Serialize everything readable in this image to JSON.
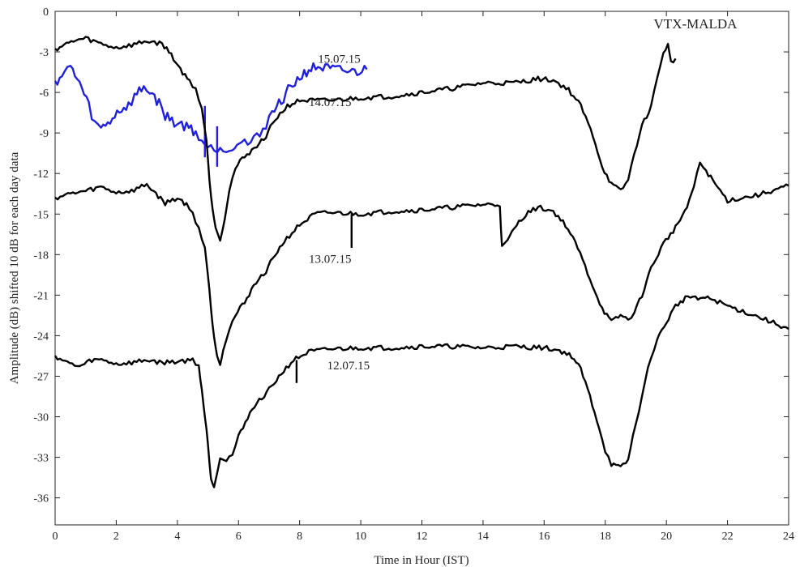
{
  "chart_data": {
    "type": "line",
    "title": "VTX-MALDA",
    "xlabel": "Time in Hour (IST)",
    "ylabel": "Amplitude (dB) shifted 10 dB for each day data",
    "xlim": [
      0,
      24
    ],
    "ylim": [
      -38,
      0
    ],
    "xticks": [
      0,
      2,
      4,
      6,
      8,
      10,
      12,
      14,
      16,
      18,
      20,
      22,
      24
    ],
    "yticks": [
      0,
      -3,
      -6,
      -9,
      -12,
      -15,
      -18,
      -21,
      -24,
      -27,
      -30,
      -33,
      -36
    ],
    "grid": false,
    "series": [
      {
        "name": "15.07.15",
        "color": "#1f1fe0",
        "label_at": [
          8.6,
          -3.8
        ],
        "points": [
          [
            0,
            -5.2
          ],
          [
            0.3,
            -4.6
          ],
          [
            0.5,
            -4.1
          ],
          [
            0.8,
            -5.3
          ],
          [
            1.1,
            -7.0
          ],
          [
            1.3,
            -8.3
          ],
          [
            1.5,
            -8.7
          ],
          [
            1.8,
            -8.1
          ],
          [
            2.1,
            -7.3
          ],
          [
            2.4,
            -7.0
          ],
          [
            2.6,
            -6.3
          ],
          [
            2.9,
            -5.6
          ],
          [
            3.1,
            -5.9
          ],
          [
            3.4,
            -6.8
          ],
          [
            3.6,
            -7.7
          ],
          [
            3.9,
            -8.2
          ],
          [
            4.3,
            -8.5
          ],
          [
            4.6,
            -8.9
          ],
          [
            4.8,
            -9.6
          ],
          [
            5.0,
            -10.0
          ],
          [
            5.2,
            -10.3
          ],
          [
            5.4,
            -9.9
          ],
          [
            5.6,
            -10.4
          ],
          [
            5.8,
            -9.9
          ],
          [
            6.1,
            -9.5
          ],
          [
            6.3,
            -9.8
          ],
          [
            6.5,
            -9.6
          ],
          [
            6.7,
            -9.0
          ],
          [
            6.9,
            -8.3
          ],
          [
            7.1,
            -7.5
          ],
          [
            7.4,
            -6.6
          ],
          [
            7.7,
            -5.6
          ],
          [
            8.0,
            -4.9
          ],
          [
            8.3,
            -4.3
          ],
          [
            8.6,
            -4.1
          ],
          [
            9.0,
            -4.3
          ],
          [
            9.4,
            -4.4
          ],
          [
            9.8,
            -4.5
          ],
          [
            10.2,
            -4.3
          ]
        ],
        "spikes": [
          [
            4.9,
            -7.0,
            -10.8
          ],
          [
            5.3,
            -8.5,
            -11.5
          ]
        ]
      },
      {
        "name": "14.07.15",
        "color": "#000000",
        "label_at": [
          8.3,
          -7.0
        ],
        "points": [
          [
            0,
            -2.8
          ],
          [
            0.3,
            -2.5
          ],
          [
            0.6,
            -2.2
          ],
          [
            1.0,
            -2.0
          ],
          [
            1.5,
            -2.4
          ],
          [
            2.0,
            -2.7
          ],
          [
            2.5,
            -2.5
          ],
          [
            3.0,
            -2.2
          ],
          [
            3.5,
            -2.4
          ],
          [
            3.8,
            -3.2
          ],
          [
            4.1,
            -4.3
          ],
          [
            4.4,
            -5.2
          ],
          [
            4.6,
            -5.7
          ],
          [
            4.8,
            -7.2
          ],
          [
            4.95,
            -9.5
          ],
          [
            5.05,
            -12.5
          ],
          [
            5.15,
            -14.5
          ],
          [
            5.25,
            -16.0
          ],
          [
            5.4,
            -16.8
          ],
          [
            5.55,
            -15.3
          ],
          [
            5.7,
            -13.2
          ],
          [
            5.9,
            -11.6
          ],
          [
            6.2,
            -10.7
          ],
          [
            6.6,
            -10.0
          ],
          [
            6.9,
            -9.2
          ],
          [
            7.2,
            -8.0
          ],
          [
            7.6,
            -7.0
          ],
          [
            8.0,
            -6.6
          ],
          [
            9.0,
            -6.6
          ],
          [
            10.0,
            -6.4
          ],
          [
            11.0,
            -6.3
          ],
          [
            12.0,
            -6.0
          ],
          [
            13.0,
            -5.7
          ],
          [
            14.0,
            -5.3
          ],
          [
            15.0,
            -5.3
          ],
          [
            15.8,
            -5.0
          ],
          [
            16.3,
            -5.1
          ],
          [
            16.8,
            -5.8
          ],
          [
            17.2,
            -7.0
          ],
          [
            17.6,
            -9.2
          ],
          [
            17.9,
            -11.5
          ],
          [
            18.2,
            -12.8
          ],
          [
            18.5,
            -13.3
          ],
          [
            18.75,
            -12.5
          ],
          [
            18.95,
            -10.5
          ],
          [
            19.2,
            -8.5
          ],
          [
            19.5,
            -7.0
          ],
          [
            19.7,
            -5.0
          ],
          [
            19.9,
            -3.0
          ],
          [
            20.05,
            -2.5
          ],
          [
            20.15,
            -3.8
          ],
          [
            20.3,
            -3.5
          ]
        ]
      },
      {
        "name": "13.07.15",
        "color": "#000000",
        "label_at": [
          8.3,
          -18.6
        ],
        "points": [
          [
            0,
            -13.8
          ],
          [
            0.5,
            -13.5
          ],
          [
            1.0,
            -13.3
          ],
          [
            1.5,
            -13.0
          ],
          [
            2.0,
            -13.4
          ],
          [
            2.5,
            -13.3
          ],
          [
            3.0,
            -12.8
          ],
          [
            3.3,
            -13.5
          ],
          [
            3.6,
            -14.2
          ],
          [
            4.0,
            -13.8
          ],
          [
            4.3,
            -14.3
          ],
          [
            4.5,
            -15.0
          ],
          [
            4.7,
            -16.0
          ],
          [
            4.9,
            -17.5
          ],
          [
            5.0,
            -19.5
          ],
          [
            5.1,
            -22.0
          ],
          [
            5.2,
            -24.0
          ],
          [
            5.3,
            -25.5
          ],
          [
            5.4,
            -26.0
          ],
          [
            5.5,
            -25.0
          ],
          [
            5.7,
            -23.5
          ],
          [
            5.9,
            -22.5
          ],
          [
            6.2,
            -21.5
          ],
          [
            6.5,
            -20.3
          ],
          [
            6.9,
            -19.2
          ],
          [
            7.2,
            -18.0
          ],
          [
            7.5,
            -17.0
          ],
          [
            8.0,
            -15.8
          ],
          [
            8.5,
            -15.0
          ],
          [
            9.0,
            -14.9
          ],
          [
            10.0,
            -15.0
          ],
          [
            11.0,
            -14.8
          ],
          [
            12.0,
            -14.7
          ],
          [
            13.0,
            -14.5
          ],
          [
            14.0,
            -14.3
          ],
          [
            14.55,
            -14.3
          ],
          [
            14.62,
            -17.5
          ],
          [
            14.8,
            -17.0
          ],
          [
            15.1,
            -15.8
          ],
          [
            15.4,
            -15.0
          ],
          [
            15.8,
            -14.5
          ],
          [
            16.3,
            -14.8
          ],
          [
            16.7,
            -15.8
          ],
          [
            17.1,
            -17.5
          ],
          [
            17.5,
            -19.8
          ],
          [
            17.9,
            -22.0
          ],
          [
            18.2,
            -23.0
          ],
          [
            18.5,
            -22.5
          ],
          [
            18.75,
            -22.8
          ],
          [
            18.95,
            -22.3
          ],
          [
            19.2,
            -21.0
          ],
          [
            19.5,
            -19.0
          ],
          [
            19.9,
            -17.2
          ],
          [
            20.3,
            -16.0
          ],
          [
            20.6,
            -14.8
          ],
          [
            20.9,
            -13.0
          ],
          [
            21.1,
            -11.2
          ],
          [
            21.3,
            -11.8
          ],
          [
            21.6,
            -12.8
          ],
          [
            22.0,
            -14.0
          ],
          [
            23.0,
            -13.6
          ],
          [
            24.0,
            -12.9
          ]
        ],
        "spikes": [
          [
            9.7,
            -15.0,
            -17.5
          ]
        ]
      },
      {
        "name": "12.07.15",
        "color": "#000000",
        "label_at": [
          8.9,
          -26.5
        ],
        "points": [
          [
            0,
            -25.5
          ],
          [
            0.4,
            -26.0
          ],
          [
            0.8,
            -26.3
          ],
          [
            1.2,
            -25.8
          ],
          [
            1.6,
            -25.8
          ],
          [
            2.0,
            -26.1
          ],
          [
            2.5,
            -26.0
          ],
          [
            3.0,
            -25.8
          ],
          [
            3.5,
            -26.0
          ],
          [
            4.0,
            -25.9
          ],
          [
            4.5,
            -25.8
          ],
          [
            4.7,
            -26.2
          ],
          [
            4.8,
            -28.0
          ],
          [
            4.9,
            -30.0
          ],
          [
            5.0,
            -32.0
          ],
          [
            5.1,
            -34.5
          ],
          [
            5.2,
            -35.2
          ],
          [
            5.3,
            -34.0
          ],
          [
            5.4,
            -33.0
          ],
          [
            5.6,
            -33.2
          ],
          [
            5.8,
            -32.8
          ],
          [
            6.0,
            -31.5
          ],
          [
            6.3,
            -30.0
          ],
          [
            6.6,
            -29.0
          ],
          [
            7.0,
            -28.0
          ],
          [
            7.4,
            -26.8
          ],
          [
            7.8,
            -25.8
          ],
          [
            8.3,
            -25.2
          ],
          [
            9.0,
            -25.0
          ],
          [
            10.0,
            -24.9
          ],
          [
            11.0,
            -24.9
          ],
          [
            12.0,
            -24.8
          ],
          [
            13.0,
            -24.8
          ],
          [
            14.0,
            -24.9
          ],
          [
            15.0,
            -24.8
          ],
          [
            16.0,
            -24.9
          ],
          [
            16.5,
            -25.1
          ],
          [
            16.9,
            -25.5
          ],
          [
            17.2,
            -26.5
          ],
          [
            17.5,
            -28.5
          ],
          [
            17.8,
            -30.8
          ],
          [
            18.0,
            -32.5
          ],
          [
            18.2,
            -33.5
          ],
          [
            18.5,
            -33.8
          ],
          [
            18.75,
            -33.2
          ],
          [
            18.9,
            -31.5
          ],
          [
            19.1,
            -29.5
          ],
          [
            19.3,
            -27.5
          ],
          [
            19.5,
            -25.5
          ],
          [
            19.7,
            -24.3
          ],
          [
            20.0,
            -23.0
          ],
          [
            20.3,
            -21.8
          ],
          [
            20.7,
            -21.1
          ],
          [
            21.2,
            -21.2
          ],
          [
            21.5,
            -21.3
          ],
          [
            22.0,
            -21.8
          ],
          [
            23.0,
            -22.6
          ],
          [
            24.0,
            -23.5
          ]
        ],
        "spikes": [
          [
            7.9,
            -25.8,
            -27.5
          ]
        ]
      }
    ]
  }
}
